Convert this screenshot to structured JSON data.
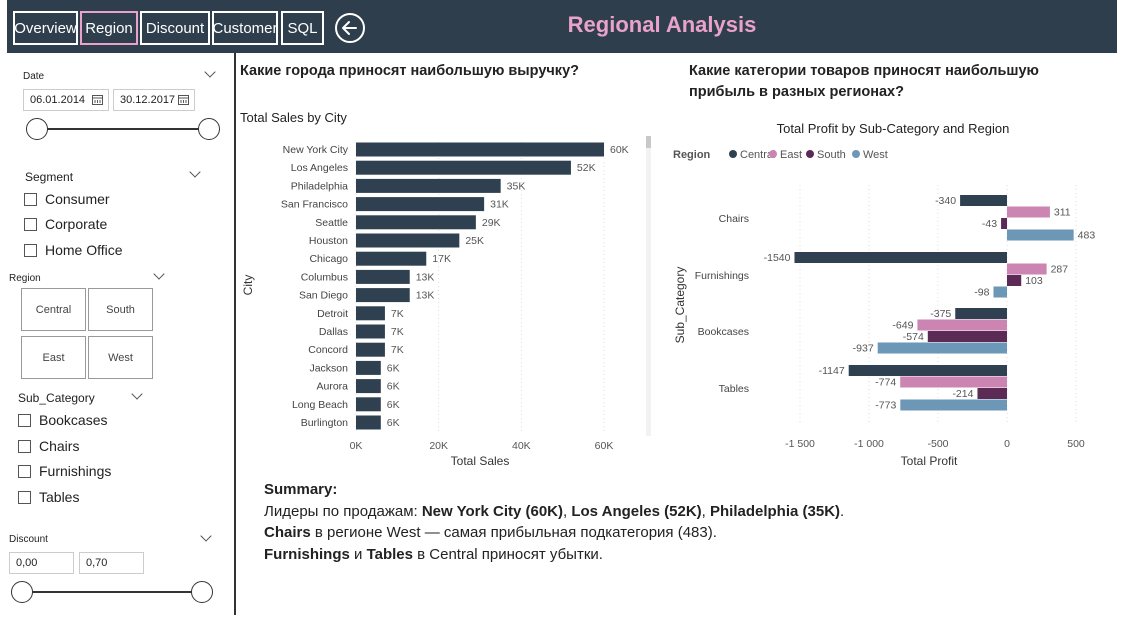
{
  "nav": {
    "tabs": [
      {
        "label": "Overview"
      },
      {
        "label": "Region"
      },
      {
        "label": "Discount"
      },
      {
        "label": "Customer"
      },
      {
        "label": "SQL"
      }
    ],
    "active_tab": "Region",
    "back_icon": "arrow-left-circle-icon"
  },
  "page_title": "Regional Analysis",
  "filters": {
    "date": {
      "label": "Date",
      "start": "06.01.2014",
      "end": "30.12.2017",
      "range_fraction": [
        0,
        1
      ]
    },
    "segment": {
      "label": "Segment",
      "options": [
        "Consumer",
        "Corporate",
        "Home Office"
      ]
    },
    "region": {
      "label": "Region",
      "tiles": [
        "Central",
        "South",
        "East",
        "West"
      ]
    },
    "sub_category": {
      "label": "Sub_Category",
      "options": [
        "Bookcases",
        "Chairs",
        "Furnishings",
        "Tables"
      ]
    },
    "discount": {
      "label": "Discount",
      "min": "0,00",
      "max": "0,70",
      "range_fraction": [
        0,
        1
      ]
    }
  },
  "questions": {
    "left": "Какие города приносят наибольшую выручку?",
    "right_line1": "Какие категории товаров приносят наибольшую",
    "right_line2": "прибыль в разных регионах?"
  },
  "colors": {
    "nav_bg": "#2e3e4c",
    "accent": "#e9a2cb",
    "central": "#2f4150",
    "east": "#cc85b2",
    "south": "#5c2b55",
    "west": "#6d97b6"
  },
  "chart_data": [
    {
      "type": "bar",
      "orientation": "horizontal",
      "title": "Total Sales by City",
      "xlabel": "Total Sales",
      "ylabel": "City",
      "xlim": [
        0,
        60000
      ],
      "x_ticks": [
        "0K",
        "20K",
        "40K",
        "60K"
      ],
      "categories": [
        "New York City",
        "Los Angeles",
        "Philadelphia",
        "San Francisco",
        "Seattle",
        "Houston",
        "Chicago",
        "Columbus",
        "San Diego",
        "Detroit",
        "Dallas",
        "Concord",
        "Jackson",
        "Aurora",
        "Long Beach",
        "Burlington"
      ],
      "values": [
        60000,
        52000,
        35000,
        31000,
        29000,
        25000,
        17000,
        13000,
        13000,
        7000,
        7000,
        7000,
        6000,
        6000,
        6000,
        6000
      ],
      "labels": [
        "60K",
        "52K",
        "35K",
        "31K",
        "29K",
        "25K",
        "17K",
        "13K",
        "13K",
        "7K",
        "7K",
        "7K",
        "6K",
        "6K",
        "6K",
        "6K"
      ],
      "color": "#2f4150"
    },
    {
      "type": "bar",
      "orientation": "horizontal",
      "title": "Total Profit by Sub-Category and Region",
      "xlabel": "Total Profit",
      "ylabel": "Sub_Category",
      "xlim": [
        -1500,
        500
      ],
      "x_ticks": [
        "-1 500",
        "-1 000",
        "-500",
        "0",
        "500"
      ],
      "x_tick_values": [
        -1500,
        -1000,
        -500,
        0,
        500
      ],
      "legend_title": "Region",
      "legend_position": "top-left",
      "categories": [
        "Chairs",
        "Furnishings",
        "Bookcases",
        "Tables"
      ],
      "series": [
        {
          "name": "Central",
          "color": "#2f4150",
          "values": [
            -340,
            -1540,
            -375,
            -1147
          ]
        },
        {
          "name": "East",
          "color": "#cc85b2",
          "values": [
            311,
            287,
            -649,
            -774
          ]
        },
        {
          "name": "South",
          "color": "#5c2b55",
          "values": [
            -43,
            103,
            -574,
            -214
          ]
        },
        {
          "name": "West",
          "color": "#6d97b6",
          "values": [
            483,
            -98,
            -937,
            -773
          ]
        }
      ]
    }
  ],
  "summary": {
    "heading": "Summary:",
    "line1_prefix": "Лидеры по продажам: ",
    "line1_b1": "New York City (60K)",
    "line1_sep1": ", ",
    "line1_b2": "Los Angeles (52K)",
    "line1_sep2": ", ",
    "line1_b3": "Philadelphia (35K)",
    "line1_end": ".",
    "line2_b": "Chairs",
    "line2_rest": " в регионе West — самая прибыльная подкатегория (483).",
    "line3_b1": "Furnishings",
    "line3_mid": " и ",
    "line3_b2": "Tables",
    "line3_rest": " в Central приносят убытки."
  }
}
